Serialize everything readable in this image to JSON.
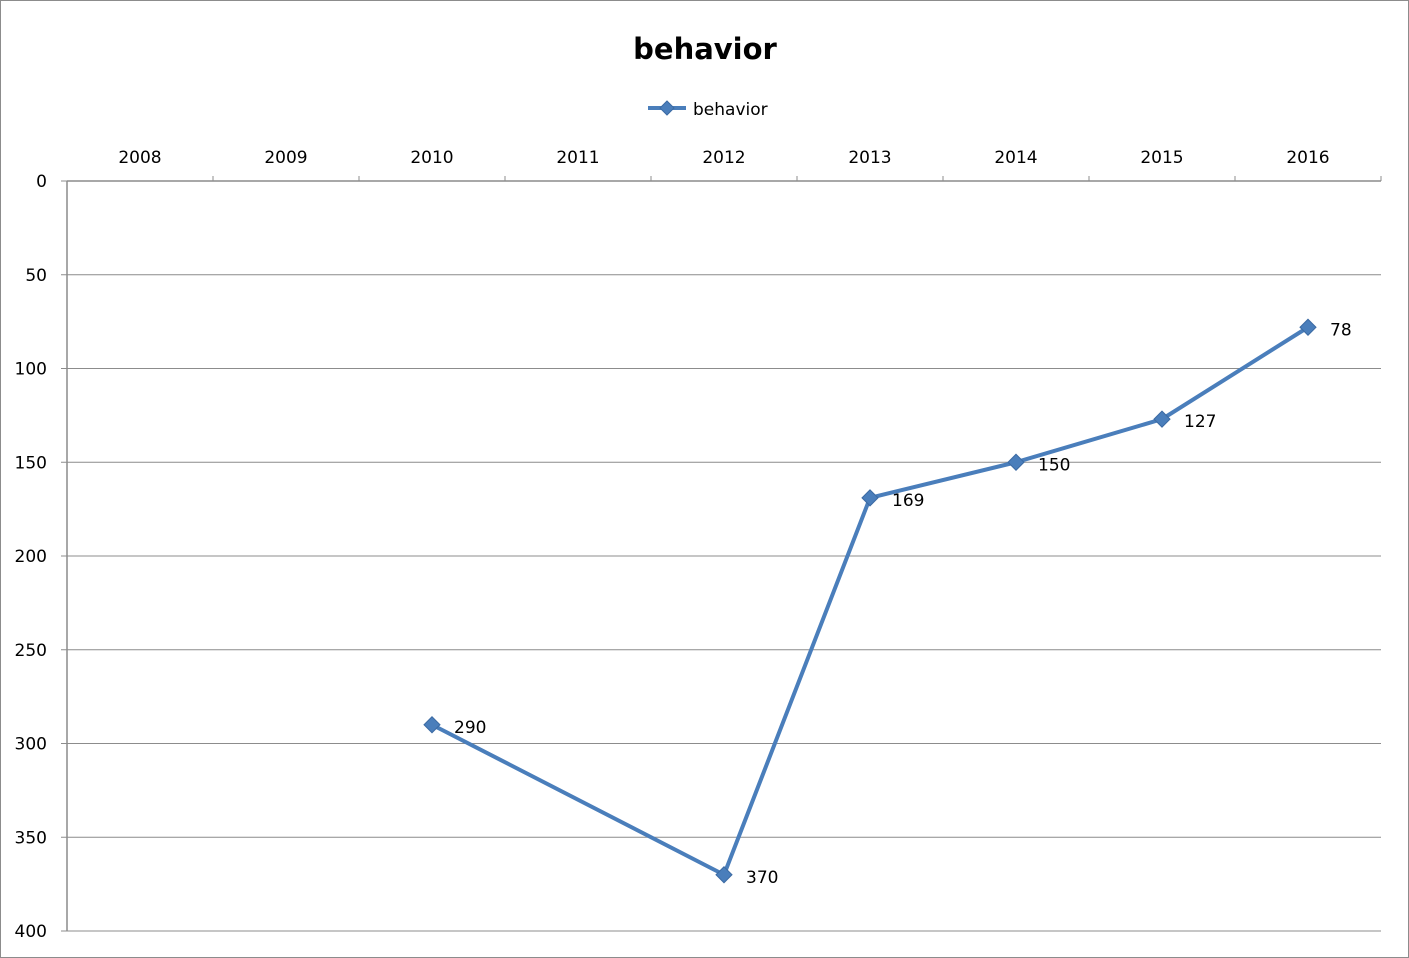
{
  "chart_data": {
    "type": "line",
    "title": "behavior",
    "xlabel": "",
    "ylabel": "",
    "categories": [
      "2008",
      "2009",
      "2010",
      "2011",
      "2012",
      "2013",
      "2014",
      "2015",
      "2016"
    ],
    "series": [
      {
        "name": "behavior",
        "values": [
          null,
          null,
          290,
          null,
          370,
          169,
          150,
          127,
          78
        ],
        "color": "#4a7ebb"
      }
    ],
    "ylim": [
      0,
      400
    ],
    "y_ticks": [
      "0",
      "50",
      "100",
      "150",
      "200",
      "250",
      "300",
      "350",
      "400"
    ],
    "y_axis_reversed": true,
    "x_axis_position": "top",
    "grid": true,
    "legend_position": "top-center",
    "marker": "diamond",
    "data_labels": true
  }
}
